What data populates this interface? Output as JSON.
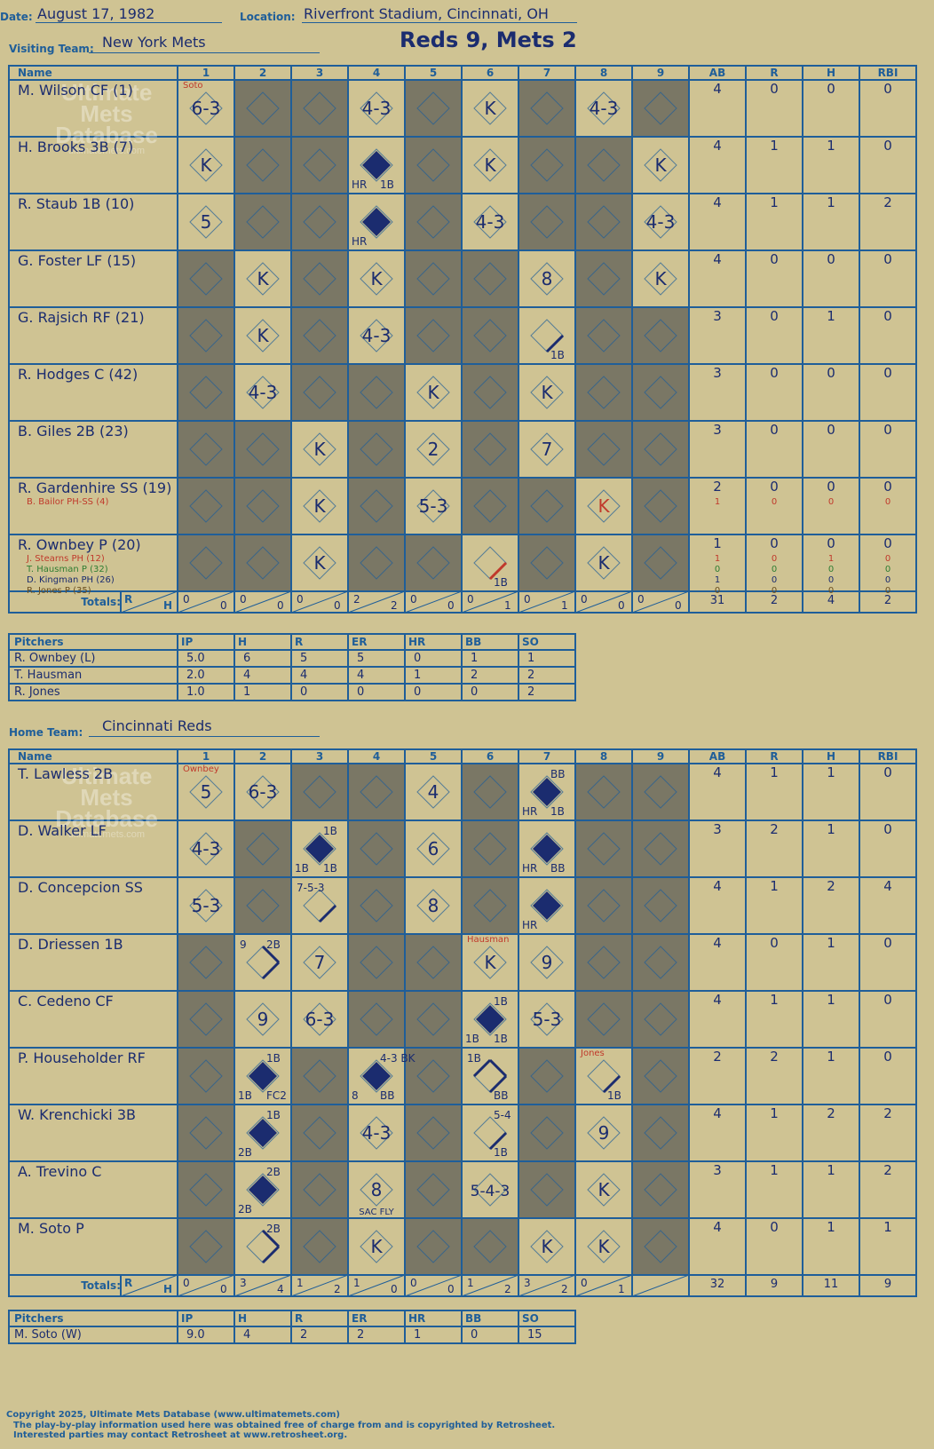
{
  "header": {
    "date_label": "Date:",
    "date": "August 17, 1982",
    "location_label": "Location:",
    "location": "Riverfront Stadium, Cincinnati, OH",
    "headline": "Reds 9, Mets 2"
  },
  "columns": {
    "name": "Name",
    "innings": [
      "1",
      "2",
      "3",
      "4",
      "5",
      "6",
      "7",
      "8",
      "9"
    ],
    "stats": [
      "AB",
      "R",
      "H",
      "RBI"
    ],
    "totals": "Totals:",
    "r": "R",
    "h": "H"
  },
  "watermark": {
    "line1": "Ultimate",
    "line2": "Mets",
    "line3": "Database",
    "url": "ultimatemets.com"
  },
  "visitor": {
    "label": "Visiting Team:",
    "team": "New York Mets",
    "batters": [
      {
        "name": "M. Wilson CF (1)",
        "stats": [
          "4",
          "0",
          "0",
          "0"
        ],
        "subs": []
      },
      {
        "name": "H. Brooks 3B (7)",
        "stats": [
          "4",
          "1",
          "1",
          "0"
        ],
        "subs": []
      },
      {
        "name": "R. Staub 1B (10)",
        "stats": [
          "4",
          "1",
          "1",
          "2"
        ],
        "subs": []
      },
      {
        "name": "G. Foster LF (15)",
        "stats": [
          "4",
          "0",
          "0",
          "0"
        ],
        "subs": []
      },
      {
        "name": "G. Rajsich RF (21)",
        "stats": [
          "3",
          "0",
          "1",
          "0"
        ],
        "subs": []
      },
      {
        "name": "R. Hodges C (42)",
        "stats": [
          "3",
          "0",
          "0",
          "0"
        ],
        "subs": []
      },
      {
        "name": "B. Giles 2B (23)",
        "stats": [
          "3",
          "0",
          "0",
          "0"
        ],
        "subs": []
      },
      {
        "name": "R. Gardenhire SS (19)",
        "stats": [
          "2",
          "0",
          "0",
          "0"
        ],
        "subs": [
          {
            "name": "B. Bailor PH-SS (4)",
            "color": "#c0392b",
            "stats": [
              "1",
              "0",
              "0",
              "0"
            ]
          }
        ]
      },
      {
        "name": "R. Ownbey P (20)",
        "stats": [
          "1",
          "0",
          "0",
          "0"
        ],
        "subs": [
          {
            "name": "J. Stearns PH (12)",
            "color": "#c0392b",
            "stats": [
              "1",
              "0",
              "1",
              "0"
            ]
          },
          {
            "name": "T. Hausman P (32)",
            "color": "#2e7d32",
            "stats": [
              "0",
              "0",
              "0",
              "0"
            ]
          },
          {
            "name": "D. Kingman PH (26)",
            "color": "#1b2c6f",
            "stats": [
              "1",
              "0",
              "0",
              "0"
            ]
          },
          {
            "name": "R. Jones P (35)",
            "color": "#6b4e1e",
            "stats": [
              "0",
              "0",
              "0",
              "0"
            ]
          }
        ]
      }
    ],
    "cells": [
      [
        {
          "t": "6-3",
          "note": "Soto"
        },
        null,
        null,
        {
          "t": "4-3"
        },
        null,
        {
          "t": "K"
        },
        null,
        {
          "t": "4-3"
        },
        null
      ],
      [
        {
          "t": "K"
        },
        null,
        null,
        {
          "d": "full",
          "labels": {
            "bl": "HR",
            "br": "1B"
          }
        },
        null,
        {
          "t": "K"
        },
        null,
        null,
        {
          "t": "K"
        }
      ],
      [
        {
          "t": "5"
        },
        null,
        null,
        {
          "d": "full",
          "labels": {
            "bl": "HR"
          }
        },
        null,
        {
          "t": "4-3"
        },
        null,
        null,
        {
          "t": "4-3"
        }
      ],
      [
        null,
        {
          "t": "K"
        },
        null,
        {
          "t": "K"
        },
        null,
        null,
        {
          "t": "8"
        },
        null,
        {
          "t": "K"
        }
      ],
      [
        null,
        {
          "t": "K"
        },
        null,
        {
          "t": "4-3"
        },
        null,
        null,
        {
          "d": "single",
          "labels": {
            "br": "1B"
          }
        },
        null,
        null
      ],
      [
        null,
        {
          "t": "4-3"
        },
        null,
        null,
        {
          "t": "K"
        },
        null,
        {
          "t": "K"
        },
        null,
        null
      ],
      [
        null,
        null,
        {
          "t": "K"
        },
        null,
        {
          "t": "2"
        },
        null,
        {
          "t": "7"
        },
        null,
        null
      ],
      [
        null,
        null,
        {
          "t": "K"
        },
        null,
        {
          "t": "5-3"
        },
        null,
        null,
        {
          "t": "K",
          "c": "#c0392b"
        },
        null
      ],
      [
        null,
        null,
        {
          "t": "K"
        },
        null,
        null,
        {
          "d": "single",
          "red": true,
          "labels": {
            "br": "1B"
          }
        },
        null,
        {
          "t": "K"
        },
        null
      ]
    ],
    "shade": [
      [
        false,
        true,
        true,
        false,
        true,
        false,
        true,
        false,
        true
      ],
      [
        false,
        true,
        true,
        false,
        true,
        false,
        true,
        true,
        false
      ],
      [
        false,
        true,
        true,
        false,
        true,
        false,
        true,
        true,
        false
      ],
      [
        true,
        false,
        true,
        false,
        true,
        true,
        false,
        true,
        false
      ],
      [
        true,
        false,
        true,
        false,
        true,
        true,
        false,
        true,
        true
      ],
      [
        true,
        false,
        true,
        true,
        false,
        true,
        false,
        true,
        true
      ],
      [
        true,
        true,
        false,
        true,
        false,
        true,
        false,
        true,
        true
      ],
      [
        true,
        true,
        false,
        true,
        false,
        true,
        true,
        false,
        true
      ],
      [
        true,
        true,
        false,
        true,
        true,
        false,
        true,
        false,
        true
      ]
    ],
    "inning_totals": [
      [
        "0",
        "0"
      ],
      [
        "0",
        "0"
      ],
      [
        "0",
        "0"
      ],
      [
        "2",
        "2"
      ],
      [
        "0",
        "0"
      ],
      [
        "0",
        "1"
      ],
      [
        "0",
        "1"
      ],
      [
        "0",
        "0"
      ],
      [
        "0",
        "0"
      ]
    ],
    "totals": [
      "31",
      "2",
      "4",
      "2"
    ],
    "pitching": {
      "headers": [
        "Pitchers",
        "IP",
        "H",
        "R",
        "ER",
        "HR",
        "BB",
        "SO"
      ],
      "rows": [
        [
          "R. Ownbey (L)",
          "5.0",
          "6",
          "5",
          "5",
          "0",
          "1",
          "1"
        ],
        [
          "T. Hausman",
          "2.0",
          "4",
          "4",
          "4",
          "1",
          "2",
          "2"
        ],
        [
          "R. Jones",
          "1.0",
          "1",
          "0",
          "0",
          "0",
          "0",
          "2"
        ]
      ]
    }
  },
  "home": {
    "label": "Home Team:",
    "team": "Cincinnati Reds",
    "batters": [
      {
        "name": "T. Lawless 2B",
        "stats": [
          "4",
          "1",
          "1",
          "0"
        ],
        "subs": []
      },
      {
        "name": "D. Walker LF",
        "stats": [
          "3",
          "2",
          "1",
          "0"
        ],
        "subs": []
      },
      {
        "name": "D. Concepcion SS",
        "stats": [
          "4",
          "1",
          "2",
          "4"
        ],
        "subs": []
      },
      {
        "name": "D. Driessen 1B",
        "stats": [
          "4",
          "0",
          "1",
          "0"
        ],
        "subs": []
      },
      {
        "name": "C. Cedeno CF",
        "stats": [
          "4",
          "1",
          "1",
          "0"
        ],
        "subs": []
      },
      {
        "name": "P. Householder RF",
        "stats": [
          "2",
          "2",
          "1",
          "0"
        ],
        "subs": []
      },
      {
        "name": "W. Krenchicki 3B",
        "stats": [
          "4",
          "1",
          "2",
          "2"
        ],
        "subs": []
      },
      {
        "name": "A. Trevino C",
        "stats": [
          "3",
          "1",
          "1",
          "2"
        ],
        "subs": []
      },
      {
        "name": "M. Soto P",
        "stats": [
          "4",
          "0",
          "1",
          "1"
        ],
        "subs": []
      }
    ],
    "cells": [
      [
        {
          "t": "5",
          "note": "Ownbey"
        },
        {
          "t": "6-3"
        },
        null,
        null,
        {
          "t": "4"
        },
        null,
        {
          "d": "full",
          "labels": {
            "tr": "BB",
            "bl": "HR",
            "br": "1B"
          }
        },
        null,
        null
      ],
      [
        {
          "t": "4-3"
        },
        null,
        {
          "d": "full",
          "labels": {
            "tr": "1B",
            "bl": "1B",
            "br": "1B"
          }
        },
        null,
        {
          "t": "6"
        },
        null,
        {
          "d": "full",
          "labels": {
            "bl": "HR",
            "br": "BB"
          }
        },
        null,
        null
      ],
      [
        {
          "t": "5-3"
        },
        null,
        {
          "d": "single",
          "labels": {
            "tl": "7-5-3"
          }
        },
        null,
        {
          "t": "8"
        },
        null,
        {
          "d": "full",
          "labels": {
            "bl": "HR"
          }
        },
        null,
        null
      ],
      [
        null,
        {
          "d": "double",
          "labels": {
            "tl": "9",
            "tr": "2B"
          }
        },
        {
          "t": "7"
        },
        null,
        null,
        {
          "t": "K",
          "note": "Hausman"
        },
        {
          "t": "9"
        },
        null,
        null
      ],
      [
        null,
        {
          "t": "9"
        },
        {
          "t": "6-3"
        },
        null,
        null,
        {
          "d": "full",
          "labels": {
            "tr": "1B",
            "bl": "1B",
            "br": "1B"
          }
        },
        {
          "t": "5-3"
        },
        null,
        null
      ],
      [
        null,
        {
          "d": "full",
          "labels": {
            "tr": "1B",
            "bl": "1B",
            "br": "FC2"
          }
        },
        null,
        {
          "d": "full",
          "labels": {
            "tr": "4-3 BK",
            "bl": "8",
            "br": "BB"
          }
        },
        null,
        {
          "d": "triple",
          "labels": {
            "tl": "1B",
            "br": "BB"
          }
        },
        null,
        {
          "d": "single",
          "note": "Jones",
          "labels": {
            "br": "1B"
          }
        },
        null
      ],
      [
        null,
        {
          "d": "full",
          "labels": {
            "tr": "1B",
            "bl": "2B"
          }
        },
        null,
        {
          "t": "4-3"
        },
        null,
        {
          "d": "single",
          "labels": {
            "tr": "5-4",
            "br": "1B"
          }
        },
        null,
        {
          "t": "9"
        },
        null
      ],
      [
        null,
        {
          "d": "full",
          "labels": {
            "tr": "2B",
            "bl": "2B"
          }
        },
        null,
        {
          "t": "8",
          "labels": {
            "b": "SAC FLY"
          }
        },
        null,
        {
          "t": "5-4-3"
        },
        null,
        {
          "t": "K"
        },
        null
      ],
      [
        null,
        {
          "d": "double",
          "labels": {
            "tr": "2B"
          }
        },
        null,
        {
          "t": "K"
        },
        null,
        null,
        {
          "t": "K"
        },
        {
          "t": "K"
        },
        null
      ]
    ],
    "shade": [
      [
        false,
        false,
        true,
        true,
        false,
        true,
        false,
        true,
        true
      ],
      [
        false,
        true,
        false,
        true,
        false,
        true,
        false,
        true,
        true
      ],
      [
        false,
        true,
        false,
        true,
        false,
        true,
        false,
        true,
        true
      ],
      [
        true,
        false,
        false,
        true,
        true,
        false,
        false,
        true,
        true
      ],
      [
        true,
        false,
        false,
        true,
        true,
        false,
        false,
        true,
        true
      ],
      [
        true,
        false,
        true,
        false,
        true,
        false,
        true,
        false,
        true
      ],
      [
        true,
        false,
        true,
        false,
        true,
        false,
        true,
        false,
        true
      ],
      [
        true,
        false,
        true,
        false,
        true,
        false,
        true,
        false,
        true
      ],
      [
        true,
        false,
        true,
        false,
        true,
        true,
        false,
        false,
        true
      ]
    ],
    "inning_totals": [
      [
        "0",
        "0"
      ],
      [
        "3",
        "4"
      ],
      [
        "1",
        "2"
      ],
      [
        "1",
        "0"
      ],
      [
        "0",
        "0"
      ],
      [
        "1",
        "2"
      ],
      [
        "3",
        "2"
      ],
      [
        "0",
        "1"
      ],
      null
    ],
    "totals": [
      "32",
      "9",
      "11",
      "9"
    ],
    "pitching": {
      "headers": [
        "Pitchers",
        "IP",
        "H",
        "R",
        "ER",
        "HR",
        "BB",
        "SO"
      ],
      "rows": [
        [
          "M. Soto (W)",
          "9.0",
          "4",
          "2",
          "2",
          "1",
          "0",
          "15"
        ]
      ]
    }
  },
  "footer": {
    "copyright": "Copyright 2025, Ultimate Mets Database (www.ultimatemets.com)",
    "line2": "The play-by-play information used here was obtained free of charge from and is copyrighted by Retrosheet.",
    "line3": "Interested parties may contact Retrosheet at www.retrosheet.org."
  },
  "colors": {
    "paper": "#cfc393",
    "shade": "#7a7765",
    "grid": "#1f5e99",
    "ink": "#1b2c6f",
    "red": "#c0392b"
  }
}
